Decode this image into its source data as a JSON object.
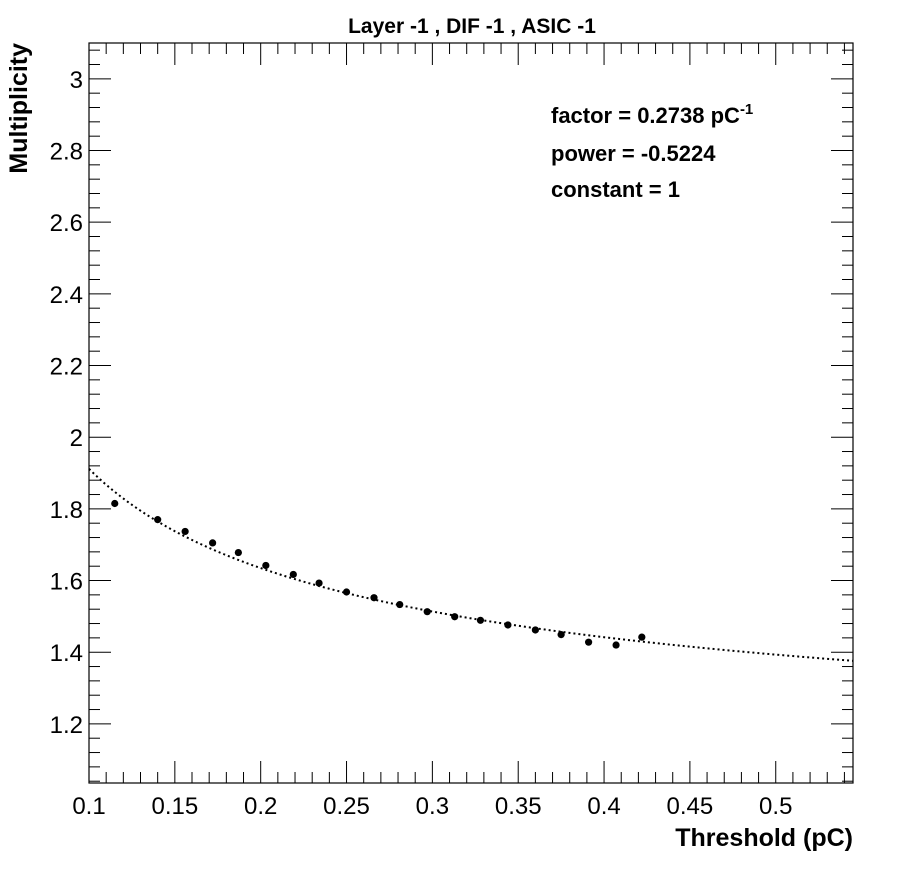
{
  "chart_data": {
    "type": "scatter",
    "title": "Layer -1 , DIF -1 , ASIC -1",
    "xlabel": "Threshold (pC)",
    "ylabel": "Multiplicity",
    "xlim": [
      0.1,
      0.545
    ],
    "ylim": [
      1.035,
      3.1
    ],
    "x_ticks": [
      0.1,
      0.15,
      0.2,
      0.25,
      0.3,
      0.35,
      0.4,
      0.45,
      0.5
    ],
    "x_tick_labels": [
      "0.1",
      "0.15",
      "0.2",
      "0.25",
      "0.3",
      "0.35",
      "0.4",
      "0.45",
      "0.5"
    ],
    "y_ticks": [
      1.2,
      1.4,
      1.6,
      1.8,
      2.0,
      2.2,
      2.4,
      2.6,
      2.8,
      3.0
    ],
    "y_tick_labels": [
      "1.2",
      "1.4",
      "1.6",
      "1.8",
      "2",
      "2.2",
      "2.4",
      "2.6",
      "2.8",
      "3"
    ],
    "grid": false,
    "series": [
      {
        "marker": "circle",
        "x": [
          0.115,
          0.14,
          0.156,
          0.172,
          0.187,
          0.203,
          0.219,
          0.234,
          0.25,
          0.266,
          0.281,
          0.297,
          0.313,
          0.328,
          0.344,
          0.36,
          0.375,
          0.391,
          0.407,
          0.422
        ],
        "y": [
          1.815,
          1.77,
          1.737,
          1.705,
          1.678,
          1.642,
          1.617,
          1.593,
          1.568,
          1.552,
          1.533,
          1.513,
          1.499,
          1.489,
          1.476,
          1.462,
          1.449,
          1.428,
          1.42,
          1.442
        ]
      }
    ],
    "fit": {
      "style": "dotted",
      "function": "constant + factor * x^power",
      "factor": 0.2738,
      "power": -0.5224,
      "constant": 1
    },
    "annotations": {
      "factor_label": "factor = 0.2738 pC",
      "factor_unit_sup": "-1",
      "power_label": "power = -0.5224",
      "constant_label": "constant = 1"
    }
  }
}
